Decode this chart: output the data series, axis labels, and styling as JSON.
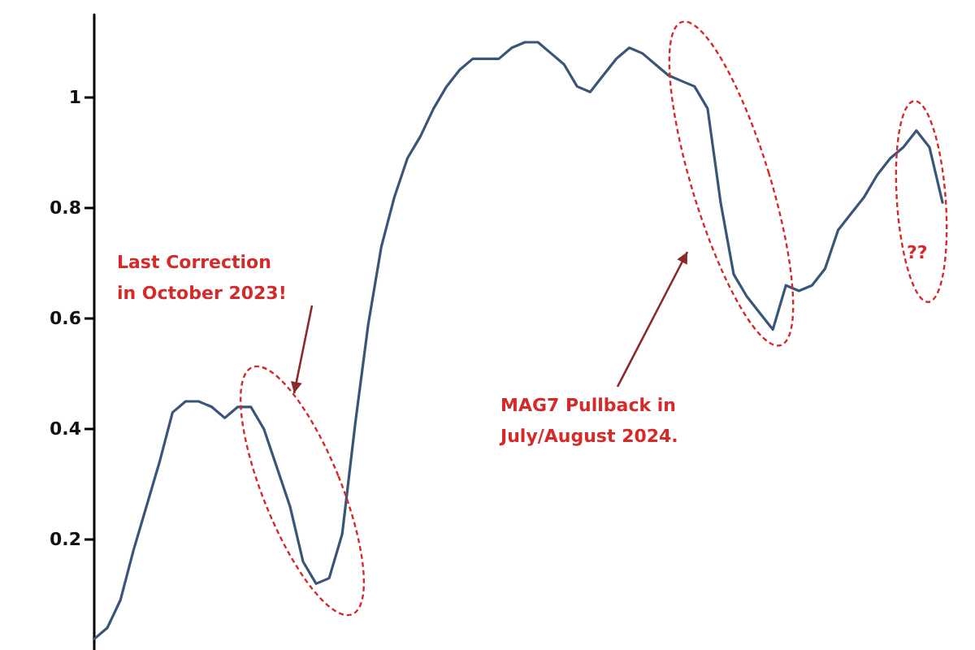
{
  "chart_data": {
    "type": "line",
    "categories": [
      null,
      null,
      null,
      null,
      null,
      null,
      null,
      null,
      null,
      null,
      null,
      null,
      null,
      null,
      null,
      null,
      null,
      null,
      null,
      null,
      null,
      null,
      null,
      null,
      null,
      null,
      null,
      null,
      null,
      null,
      null,
      null,
      null,
      null,
      null,
      null,
      null,
      null,
      null,
      null,
      null,
      null,
      null,
      null,
      null,
      null,
      null,
      null,
      null,
      null,
      null,
      null,
      null,
      null,
      null,
      null,
      null,
      null,
      null,
      null,
      null,
      null,
      null,
      null,
      null,
      null
    ],
    "series": [
      {
        "color": "#3b5578",
        "values": [
          0.02,
          0.04,
          0.09,
          0.18,
          0.26,
          0.34,
          0.43,
          0.45,
          0.45,
          0.44,
          0.42,
          0.44,
          0.44,
          0.4,
          0.33,
          0.26,
          0.16,
          0.12,
          0.13,
          0.21,
          0.41,
          0.59,
          0.73,
          0.82,
          0.89,
          0.93,
          0.98,
          1.02,
          1.05,
          1.07,
          1.07,
          1.07,
          1.09,
          1.1,
          1.1,
          1.08,
          1.06,
          1.02,
          1.01,
          1.04,
          1.07,
          1.09,
          1.08,
          1.06,
          1.04,
          1.03,
          1.02,
          0.98,
          0.81,
          0.68,
          0.64,
          0.61,
          0.58,
          0.66,
          0.65,
          0.66,
          0.69,
          0.76,
          0.79,
          0.82,
          0.86,
          0.89,
          0.91,
          0.94,
          0.91,
          0.81
        ]
      }
    ],
    "ylim": [
      0,
      1.15
    ],
    "yticks": [
      0.2,
      0.4,
      0.6,
      0.8,
      1
    ],
    "tick_labels": "y",
    "grid": false,
    "marker": "none",
    "line_style": "solid",
    "annotations": [
      "Last Correction\nin October 2023!",
      "MAG7 Pullback in\nJuly/August 2024.",
      "??"
    ]
  }
}
